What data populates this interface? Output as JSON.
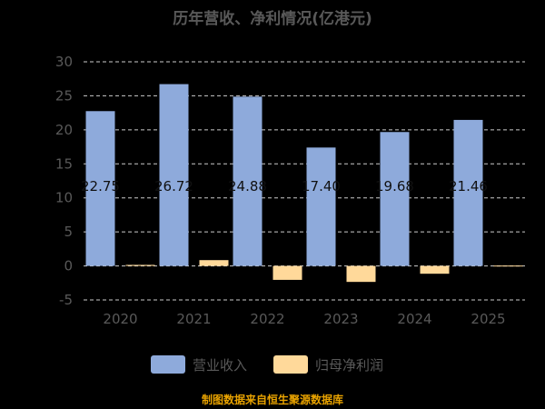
{
  "colors": {
    "revenue": "#8eaadb",
    "profit": "#ffd99a",
    "grid": "#cccccc",
    "axis": "#595959",
    "source": "#e8a200"
  },
  "chart_data": {
    "type": "bar",
    "title": "历年营收、净利情况(亿港元)",
    "categories": [
      "2020",
      "2021",
      "2022",
      "2023",
      "2024",
      "2025"
    ],
    "series": [
      {
        "name": "营业收入",
        "values": [
          22.75,
          26.72,
          24.88,
          17.4,
          19.68,
          21.46
        ]
      },
      {
        "name": "归母净利润",
        "values": [
          0.15,
          0.85,
          -2.05,
          -2.35,
          -1.15,
          0.05
        ]
      }
    ],
    "data_labels": [
      "22.75",
      "26.72",
      "24.88",
      "17.40",
      "19.68",
      "21.46"
    ],
    "yticks": [
      30,
      25,
      20,
      15,
      10,
      5,
      0,
      -5
    ],
    "ylim": [
      -5,
      30
    ],
    "grid": true,
    "legend_position": "bottom"
  },
  "footer": {
    "source": "制图数据来自恒生聚源数据库"
  }
}
